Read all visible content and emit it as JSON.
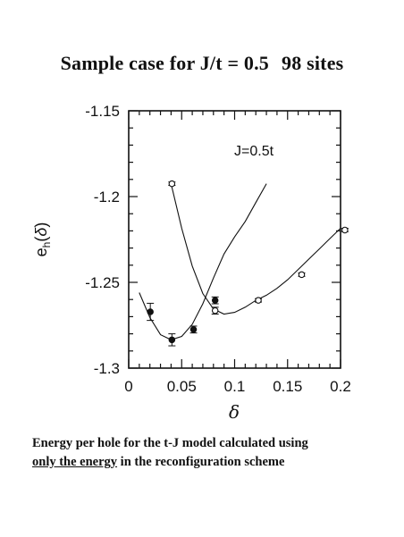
{
  "page": {
    "title_main": "Sample case for J/t = 0.5",
    "title_sites": "98 sites",
    "caption_line1": "Energy per hole for the t-J model calculated using",
    "caption_underlined": "only the energy",
    "caption_rest": " in the reconfiguration  scheme"
  },
  "chart_data": {
    "type": "scatter",
    "xlabel": "δ",
    "ylabel": "e_h(δ)",
    "annotation": "J=0.5t",
    "xlim": [
      0,
      0.2
    ],
    "ylim": [
      -1.3,
      -1.15
    ],
    "x_ticks": [
      0,
      0.05,
      0.1,
      0.15,
      0.2
    ],
    "x_tick_labels": [
      "0",
      "0.05",
      "0.1",
      "0.15",
      "0.2"
    ],
    "y_ticks": [
      -1.3,
      -1.25,
      -1.2,
      -1.15
    ],
    "y_tick_labels": [
      "-1.3",
      "-1.25",
      "-1.2",
      "-1.15"
    ],
    "grid": false,
    "series": [
      {
        "marker": "filled-circle",
        "points": [
          {
            "x": 0.0204,
            "y": -1.2672,
            "err": 0.005
          },
          {
            "x": 0.0408,
            "y": -1.2835,
            "err": 0.0035
          },
          {
            "x": 0.0612,
            "y": -1.2775,
            "err": 0.002
          },
          {
            "x": 0.0816,
            "y": -1.2605,
            "err": 0.002
          }
        ],
        "fit_curve": [
          [
            0.01,
            -1.256
          ],
          [
            0.02,
            -1.2705
          ],
          [
            0.03,
            -1.2805
          ],
          [
            0.04,
            -1.2835
          ],
          [
            0.05,
            -1.2815
          ],
          [
            0.06,
            -1.2745
          ],
          [
            0.07,
            -1.2625
          ],
          [
            0.08,
            -1.2475
          ],
          [
            0.09,
            -1.2335
          ],
          [
            0.1,
            -1.2235
          ],
          [
            0.11,
            -1.2145
          ],
          [
            0.12,
            -1.2035
          ],
          [
            0.13,
            -1.1925
          ]
        ]
      },
      {
        "marker": "open-circle",
        "points": [
          {
            "x": 0.0408,
            "y": -1.1925,
            "err": 0.001
          },
          {
            "x": 0.0816,
            "y": -1.2665,
            "err": 0.002
          },
          {
            "x": 0.1224,
            "y": -1.2605,
            "err": 0.001
          },
          {
            "x": 0.1633,
            "y": -1.2455,
            "err": 0.001
          },
          {
            "x": 0.2041,
            "y": -1.2195,
            "err": 0.001
          }
        ],
        "fit_curve": [
          [
            0.04,
            -1.1925
          ],
          [
            0.05,
            -1.2185
          ],
          [
            0.06,
            -1.2405
          ],
          [
            0.07,
            -1.2565
          ],
          [
            0.08,
            -1.2655
          ],
          [
            0.09,
            -1.2685
          ],
          [
            0.1,
            -1.2675
          ],
          [
            0.11,
            -1.2645
          ],
          [
            0.12,
            -1.2605
          ],
          [
            0.13,
            -1.2575
          ],
          [
            0.14,
            -1.2535
          ],
          [
            0.15,
            -1.2485
          ],
          [
            0.16,
            -1.2425
          ],
          [
            0.17,
            -1.2365
          ],
          [
            0.18,
            -1.2305
          ],
          [
            0.19,
            -1.2245
          ],
          [
            0.2,
            -1.2185
          ]
        ]
      }
    ]
  }
}
